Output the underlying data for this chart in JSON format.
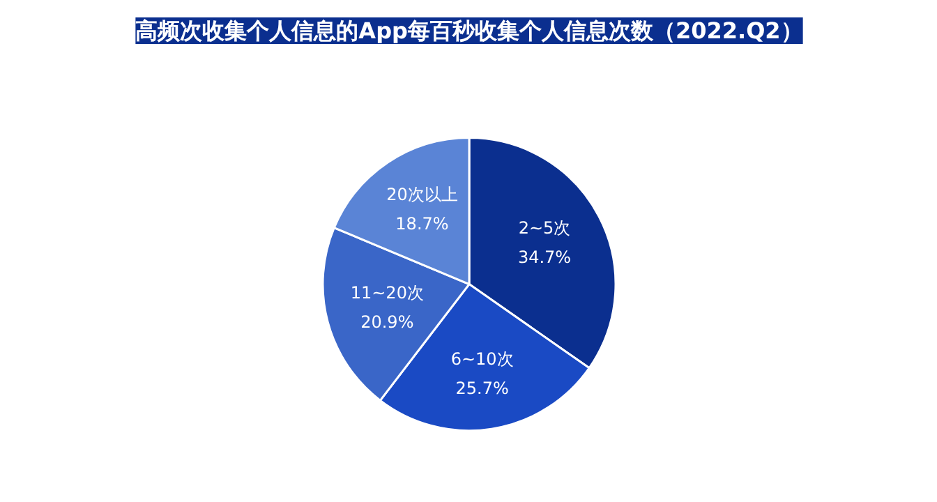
{
  "chart_data": {
    "type": "pie",
    "title": "高频次收集个人信息的App每百秒收集个人信息次数（2022.Q2）",
    "categories": [
      "2~5次",
      "6~10次",
      "11~20次",
      "20次以上"
    ],
    "values": [
      34.7,
      25.7,
      20.9,
      18.7
    ],
    "colors": [
      "#0b2f8f",
      "#1a4ac4",
      "#3a66c8",
      "#5a84d6"
    ],
    "value_labels": [
      "34.7%",
      "25.7%",
      "20.9%",
      "18.7%"
    ]
  }
}
